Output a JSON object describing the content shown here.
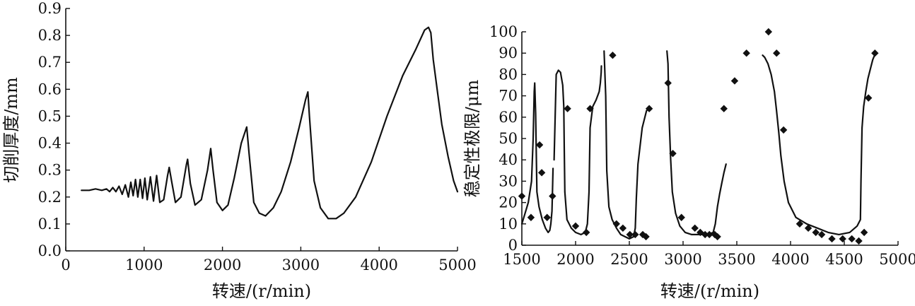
{
  "chart_data": [
    {
      "type": "line",
      "xlabel": "转速/(r/min)",
      "ylabel": "切削厚度/mm",
      "xlim": [
        0,
        5000
      ],
      "ylim": [
        0,
        0.9
      ],
      "xticks": [
        0,
        1000,
        2000,
        3000,
        4000,
        5000
      ],
      "yticks": [
        0.0,
        0.1,
        0.2,
        0.3,
        0.4,
        0.5,
        0.6,
        0.7,
        0.8,
        0.9
      ],
      "xtick_labels": [
        "0",
        "1000",
        "2000",
        "3000",
        "4000",
        "5000"
      ],
      "ytick_labels": [
        "0.0",
        "0.1",
        "0.2",
        "0.3",
        "0.4",
        "0.5",
        "0.6",
        "0.7",
        "0.8",
        "0.9"
      ],
      "grid": false,
      "series": [
        {
          "x": [
            200,
            300,
            380,
            460,
            520,
            560,
            600,
            640,
            680,
            720,
            760,
            800,
            830,
            860,
            890,
            920,
            950,
            980,
            1010,
            1040,
            1080,
            1120,
            1160,
            1200,
            1250,
            1300,
            1320,
            1350,
            1400,
            1470,
            1540,
            1555,
            1590,
            1650,
            1730,
            1810,
            1850,
            1880,
            1930,
            2000,
            2070,
            2150,
            2240,
            2310,
            2340,
            2400,
            2470,
            2550,
            2650,
            2750,
            2870,
            2980,
            3060,
            3090,
            3110,
            3170,
            3250,
            3350,
            3450,
            3550,
            3700,
            3900,
            4100,
            4300,
            4470,
            4580,
            4630,
            4660,
            4690,
            4740,
            4800,
            4880,
            4950,
            5000
          ],
          "y": [
            0.225,
            0.225,
            0.23,
            0.225,
            0.23,
            0.22,
            0.235,
            0.22,
            0.24,
            0.21,
            0.245,
            0.2,
            0.255,
            0.205,
            0.265,
            0.2,
            0.265,
            0.195,
            0.27,
            0.19,
            0.275,
            0.185,
            0.28,
            0.18,
            0.19,
            0.28,
            0.31,
            0.26,
            0.18,
            0.2,
            0.32,
            0.34,
            0.25,
            0.17,
            0.19,
            0.3,
            0.38,
            0.3,
            0.18,
            0.15,
            0.17,
            0.27,
            0.4,
            0.46,
            0.36,
            0.18,
            0.14,
            0.13,
            0.16,
            0.22,
            0.33,
            0.46,
            0.56,
            0.59,
            0.5,
            0.26,
            0.16,
            0.12,
            0.12,
            0.14,
            0.2,
            0.33,
            0.5,
            0.65,
            0.75,
            0.82,
            0.83,
            0.81,
            0.71,
            0.6,
            0.47,
            0.35,
            0.26,
            0.22
          ]
        }
      ]
    },
    {
      "type": "line",
      "xlabel": "转速/(r/min)",
      "ylabel": "稳定性极限/μm",
      "xlim": [
        1500,
        5000
      ],
      "ylim": [
        0,
        100
      ],
      "xticks": [
        1500,
        2000,
        2500,
        3000,
        3500,
        4000,
        4500,
        5000
      ],
      "yticks": [
        0,
        10,
        20,
        30,
        40,
        50,
        60,
        70,
        80,
        90,
        100
      ],
      "xtick_labels": [
        "1500",
        "2000",
        "2500",
        "3000",
        "3500",
        "4000",
        "4500",
        "5000"
      ],
      "ytick_labels": [
        "0",
        "10",
        "20",
        "30",
        "40",
        "50",
        "60",
        "70",
        "80",
        "90",
        "100"
      ],
      "grid": false,
      "series": [
        {
          "x": [
            1500,
            1530,
            1560,
            1590,
            1605,
            1615,
            1620,
            1628,
            1640,
            1660,
            1690,
            1720,
            1745,
            1760,
            1770,
            1780,
            1785,
            1790
          ],
          "y": [
            10,
            15,
            20,
            30,
            50,
            72,
            76,
            62,
            25,
            18,
            12,
            8,
            6,
            7,
            10,
            16,
            25,
            36
          ]
        },
        {
          "x": [
            1800,
            1810,
            1820,
            1840,
            1860,
            1880,
            1890,
            1895,
            1900,
            1920,
            1960,
            2000,
            2050,
            2090,
            2110,
            2125,
            2135,
            2160,
            2190,
            2220,
            2230,
            2238,
            2240
          ],
          "y": [
            40,
            60,
            80,
            82,
            81,
            75,
            65,
            45,
            25,
            12,
            8,
            6,
            5,
            6,
            10,
            25,
            55,
            65,
            68,
            72,
            76,
            81,
            84
          ]
        },
        {
          "x": [
            2265,
            2280,
            2290,
            2310,
            2340,
            2380,
            2420,
            2460,
            2500,
            2540,
            2555,
            2565,
            2580,
            2620,
            2660,
            2680
          ],
          "y": [
            91,
            70,
            35,
            18,
            12,
            8,
            5,
            4,
            3,
            4,
            8,
            22,
            38,
            55,
            63,
            64
          ]
        },
        {
          "x": [
            2850,
            2860,
            2870,
            2885,
            2900,
            2930,
            2970,
            3020,
            3080,
            3150,
            3230,
            3280,
            3300,
            3320,
            3340,
            3360,
            3380,
            3400
          ],
          "y": [
            91,
            85,
            60,
            40,
            25,
            15,
            9,
            6,
            5,
            5,
            5,
            6,
            10,
            18,
            24,
            29,
            34,
            38
          ]
        },
        {
          "x": [
            3740,
            3760,
            3790,
            3820,
            3850,
            3870,
            3890,
            3910,
            3940,
            3980,
            4050,
            4150,
            4250,
            4350,
            4450,
            4550,
            4620,
            4650,
            4655,
            4665,
            4680,
            4700,
            4720,
            4745,
            4765,
            4790
          ],
          "y": [
            89,
            88,
            85,
            80,
            72,
            63,
            53,
            42,
            30,
            20,
            13,
            10,
            8,
            6,
            5,
            6,
            9,
            12,
            30,
            55,
            65,
            72,
            78,
            83,
            87,
            90
          ]
        },
        {
          "type": "scatter",
          "x": [
            1500,
            1585,
            1665,
            1685,
            1735,
            1785,
            1925,
            2000,
            2100,
            2135,
            2345,
            2380,
            2440,
            2505,
            2555,
            2625,
            2655,
            2685,
            2860,
            2905,
            2985,
            3110,
            3160,
            3205,
            3245,
            3295,
            3320,
            3380,
            3480,
            3590,
            3795,
            3870,
            3935,
            4085,
            4165,
            4235,
            4290,
            4385,
            4485,
            4570,
            4635,
            4685,
            4725,
            4785
          ],
          "y": [
            23,
            13,
            47,
            34,
            13,
            23,
            64,
            9,
            6,
            64,
            89,
            10,
            8,
            5,
            5,
            5,
            4,
            64,
            76,
            43,
            13,
            8,
            6,
            5,
            5,
            5,
            4,
            64,
            77,
            90,
            100,
            90,
            54,
            10,
            8,
            6,
            5,
            3,
            3,
            3,
            2,
            6,
            69,
            90
          ]
        }
      ]
    }
  ]
}
